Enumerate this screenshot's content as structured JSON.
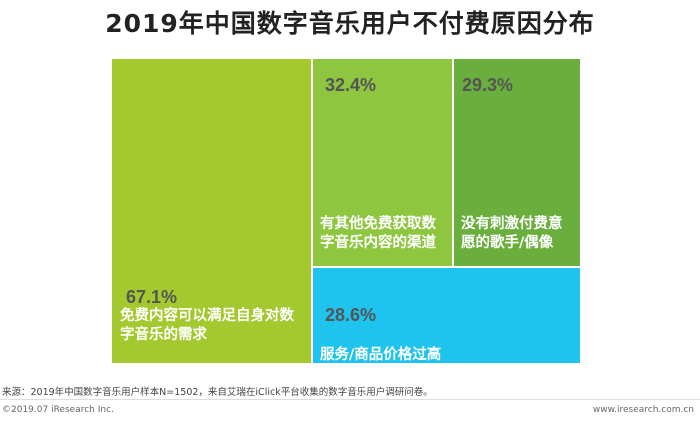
{
  "title": "2019年中国数字音乐用户不付费原因分布",
  "chart_data": {
    "type": "treemap",
    "title": "2019年中国数字音乐用户不付费原因分布",
    "items": [
      {
        "value": 67.1,
        "value_label": "67.1%",
        "label_lines": [
          "免费内容可以满足自身对数",
          "字音乐的需求"
        ],
        "color": "#a4c92e"
      },
      {
        "value": 32.4,
        "value_label": "32.4%",
        "label_lines": [
          "有其他免费获取数",
          "字音乐内容的渠道"
        ],
        "color": "#8ec640"
      },
      {
        "value": 29.3,
        "value_label": "29.3%",
        "label_lines": [
          "没有刺激付费意",
          "愿的歌手/偶像"
        ],
        "color": "#6aaf3d"
      },
      {
        "value": 28.6,
        "value_label": "28.6%",
        "label_lines": [
          "服务/商品价格过高"
        ],
        "color": "#1ec3ee"
      }
    ]
  },
  "source": "来源：2019年中国数字音乐用户样本N=1502，来自艾瑞在iClick平台收集的数字音乐用户调研问卷。",
  "copyright": "©2019.07 iResearch Inc.",
  "website": "www.iresearch.com.cn"
}
